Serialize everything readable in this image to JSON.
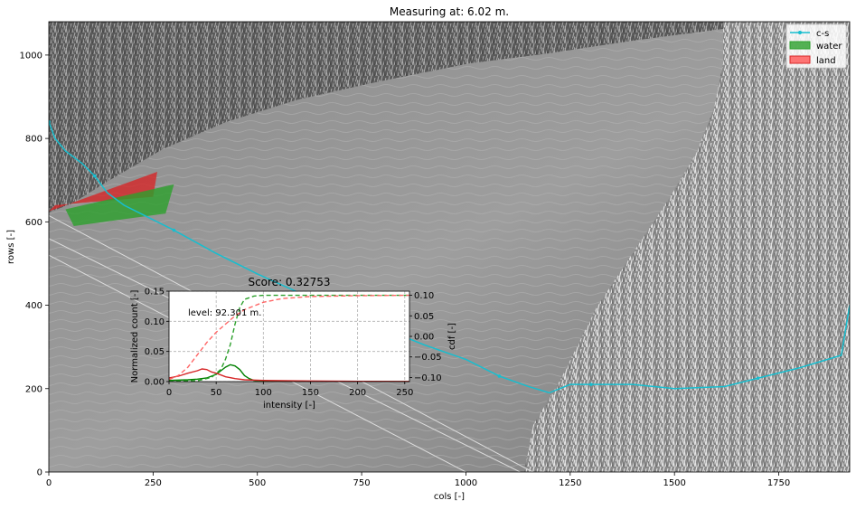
{
  "chart_data": [
    {
      "type": "scatter",
      "title": "Measuring at: 6.02 m.",
      "xlabel": "cols [-]",
      "ylabel": "rows [-]",
      "xlim": [
        0,
        1920
      ],
      "ylim": [
        0,
        1080
      ],
      "x_ticks": [
        0,
        250,
        500,
        750,
        1000,
        1250,
        1500,
        1750
      ],
      "y_ticks": [
        0,
        200,
        400,
        600,
        800,
        1000
      ],
      "grid": false,
      "background": "grayscale photograph of a stream channel with vegetated banks",
      "legend": {
        "placement": "top-right",
        "entries": [
          "c-s",
          "water",
          "land"
        ]
      },
      "series": [
        {
          "name": "c-s",
          "color": "#17becf",
          "style": "line-with-markers",
          "x": [
            0,
            15,
            40,
            80,
            110,
            140,
            180,
            230,
            300,
            400,
            500,
            600,
            700,
            800,
            900,
            1000,
            1080,
            1150,
            1200,
            1250,
            1300,
            1400,
            1500,
            1620,
            1700,
            1800,
            1900,
            1920
          ],
          "y": [
            840,
            800,
            770,
            740,
            710,
            670,
            640,
            615,
            580,
            525,
            475,
            430,
            385,
            345,
            305,
            270,
            230,
            205,
            190,
            210,
            210,
            210,
            200,
            205,
            225,
            250,
            280,
            400
          ]
        },
        {
          "name": "water",
          "color": "#2ca02c",
          "type": "area",
          "x": [
            40,
            300,
            280,
            60
          ],
          "y": [
            630,
            690,
            620,
            590
          ]
        },
        {
          "name": "land",
          "color": "#d62728",
          "type": "area",
          "x": [
            0,
            260,
            250,
            15
          ],
          "y": [
            625,
            720,
            660,
            640
          ]
        },
        {
          "name": "reference lines",
          "color": "#dddddd",
          "type": "line",
          "lines": [
            {
              "x": [
                0,
                1160
              ],
              "y": [
                615,
                0
              ]
            },
            {
              "x": [
                0,
                1130
              ],
              "y": [
                560,
                0
              ]
            },
            {
              "x": [
                0,
                1000
              ],
              "y": [
                520,
                0
              ]
            }
          ]
        }
      ]
    },
    {
      "type": "line",
      "title": "Score: 0.32753",
      "xlabel": "intensity [-]",
      "ylabel": "Normalized count [-]",
      "y2label": "cdf [-]",
      "xlim": [
        0,
        255
      ],
      "ylim": [
        0,
        0.15
      ],
      "y2lim": [
        -0.11,
        0.11
      ],
      "x_ticks": [
        0,
        50,
        100,
        150,
        200,
        250
      ],
      "y_ticks": [
        "0.00",
        "0.05",
        "0.10",
        "0.15"
      ],
      "y2_ticks": [
        "0.10",
        "0.05",
        "0.00",
        "−0.05",
        "−0.10"
      ],
      "grid": true,
      "annotation": "level: 92.301 m.",
      "series": [
        {
          "name": "water histogram",
          "color": "#008000",
          "style": "solid",
          "x": [
            0,
            20,
            30,
            40,
            50,
            55,
            60,
            65,
            70,
            75,
            80,
            85,
            90,
            100,
            120,
            150,
            200,
            255
          ],
          "y": [
            0.002,
            0.003,
            0.004,
            0.006,
            0.012,
            0.018,
            0.024,
            0.028,
            0.026,
            0.02,
            0.01,
            0.005,
            0.002,
            0.001,
            0.0005,
            0.0002,
            0.0001,
            0.0001
          ]
        },
        {
          "name": "land histogram",
          "color": "#d62728",
          "style": "solid",
          "x": [
            0,
            10,
            20,
            30,
            35,
            40,
            45,
            50,
            60,
            70,
            80,
            100,
            150,
            200,
            255
          ],
          "y": [
            0.006,
            0.009,
            0.014,
            0.018,
            0.021,
            0.02,
            0.016,
            0.014,
            0.008,
            0.005,
            0.003,
            0.002,
            0.001,
            0.0005,
            0.0003
          ]
        },
        {
          "name": "water cdf",
          "color": "#2ca02c",
          "style": "dashed",
          "axis": "y2",
          "x": [
            0,
            30,
            45,
            55,
            60,
            65,
            70,
            75,
            80,
            90,
            100,
            150,
            200,
            255
          ],
          "y": [
            -0.109,
            -0.108,
            -0.1,
            -0.08,
            -0.055,
            -0.02,
            0.03,
            0.07,
            0.09,
            0.098,
            0.1,
            0.1,
            0.1,
            0.1
          ]
        },
        {
          "name": "land cdf",
          "color": "#ff6666",
          "style": "dashed",
          "axis": "y2",
          "x": [
            0,
            10,
            20,
            30,
            40,
            50,
            60,
            70,
            80,
            100,
            120,
            150,
            200,
            255
          ],
          "y": [
            -0.105,
            -0.095,
            -0.075,
            -0.045,
            -0.015,
            0.01,
            0.03,
            0.05,
            0.065,
            0.083,
            0.092,
            0.097,
            0.099,
            0.1
          ]
        }
      ]
    }
  ]
}
